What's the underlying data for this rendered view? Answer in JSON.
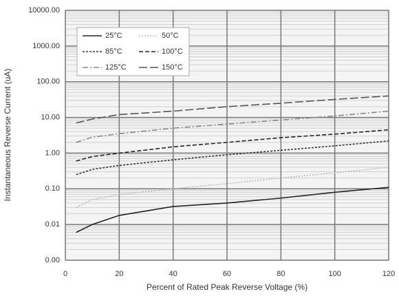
{
  "chart_data": {
    "type": "line",
    "x_label": "Percent of  Rated Peak Reverse Voltage (%)",
    "y_label": "Instantaneous Reverse Current (uA)",
    "xlim": [
      0,
      120
    ],
    "xticks": [
      0,
      20,
      40,
      60,
      80,
      100,
      120
    ],
    "ylim": [
      0.001,
      10000
    ],
    "log_y": true,
    "grid": true,
    "minor_grid": true,
    "yticks": [
      {
        "value": 0.001,
        "label": "0.00"
      },
      {
        "value": 0.01,
        "label": "0.01"
      },
      {
        "value": 0.1,
        "label": "0.10"
      },
      {
        "value": 1,
        "label": "1.00"
      },
      {
        "value": 10,
        "label": "10.00"
      },
      {
        "value": 100,
        "label": "100.00"
      },
      {
        "value": 1000,
        "label": "1000.00"
      },
      {
        "value": 10000,
        "label": "10000.00"
      }
    ],
    "legend": "upper left",
    "series": [
      {
        "name": "25°C",
        "color": "#222222",
        "dash": "",
        "x": [
          4,
          10,
          20,
          40,
          60,
          80,
          100,
          120
        ],
        "values": [
          0.006,
          0.01,
          0.018,
          0.032,
          0.04,
          0.055,
          0.08,
          0.11
        ]
      },
      {
        "name": "50°C",
        "color": "#bbbbbb",
        "dash": "2 2",
        "x": [
          4,
          10,
          20,
          40,
          60,
          80,
          100,
          120
        ],
        "values": [
          0.03,
          0.05,
          0.07,
          0.1,
          0.14,
          0.2,
          0.28,
          0.4
        ]
      },
      {
        "name": "85°C",
        "color": "#333333",
        "dash": "3 2",
        "x": [
          4,
          10,
          20,
          40,
          60,
          80,
          100,
          120
        ],
        "values": [
          0.25,
          0.35,
          0.45,
          0.65,
          0.9,
          1.2,
          1.6,
          2.2
        ]
      },
      {
        "name": "100°C",
        "color": "#222222",
        "dash": "6 3",
        "x": [
          4,
          10,
          20,
          40,
          60,
          80,
          100,
          120
        ],
        "values": [
          0.6,
          0.8,
          1.0,
          1.5,
          2.0,
          2.7,
          3.4,
          4.5
        ]
      },
      {
        "name": "125°C",
        "color": "#888888",
        "dash": "8 3 2 3",
        "x": [
          4,
          10,
          20,
          40,
          60,
          80,
          100,
          120
        ],
        "values": [
          2.0,
          2.8,
          3.5,
          5.0,
          6.5,
          8.5,
          11,
          15
        ]
      },
      {
        "name": "150°C",
        "color": "#555555",
        "dash": "12 4",
        "x": [
          4,
          10,
          20,
          40,
          60,
          80,
          100,
          120
        ],
        "values": [
          7,
          9,
          12,
          15,
          20,
          25,
          32,
          40
        ]
      }
    ]
  }
}
